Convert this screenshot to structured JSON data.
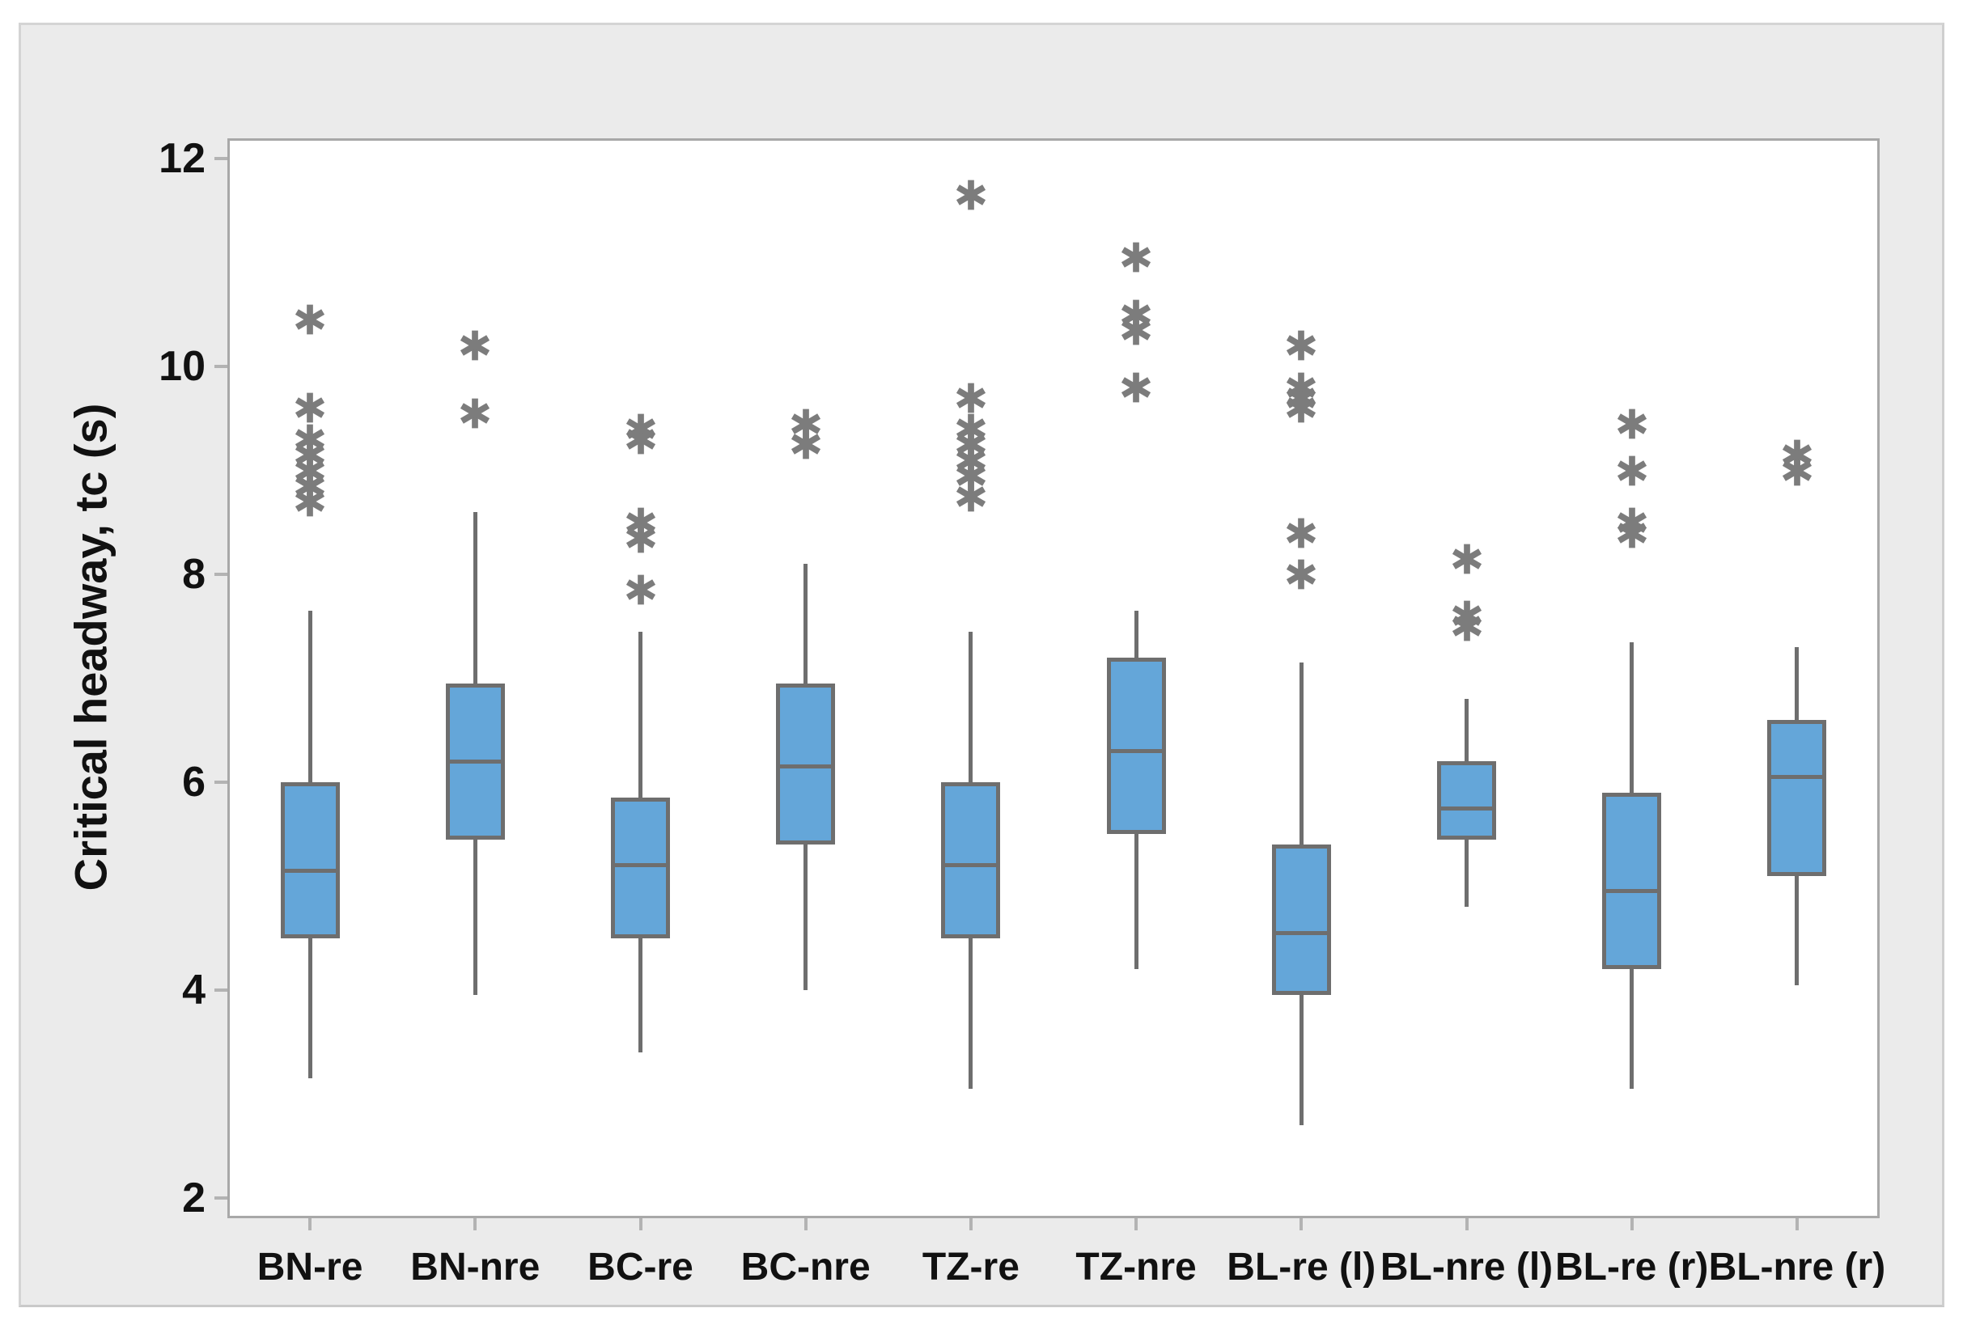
{
  "colors": {
    "page_bg": "#ffffff",
    "canvas_bg": "#ebebeb",
    "canvas_border": "#d4d4d4",
    "plot_bg": "#ffffff",
    "plot_border": "#a8a8a8",
    "tick_color": "#b3b3b3",
    "box_fill": "#64a6d9",
    "line_color": "#6e6e6e",
    "outlier_color": "#7c7c7c",
    "text_color": "#111111"
  },
  "chart_data": {
    "type": "boxplot",
    "title": "",
    "xlabel": "",
    "ylabel": "Critical headway, tc (s)",
    "ylim": [
      1.8,
      12.2
    ],
    "yticks": [
      2,
      4,
      6,
      8,
      10,
      12
    ],
    "grid": false,
    "legend": false,
    "categories": [
      "BN-re",
      "BN-nre",
      "BC-re",
      "BC-nre",
      "TZ-re",
      "TZ-nre",
      "BL-re (l)",
      "BL-nre (l)",
      "BL-re (r)",
      "BL-nre (r)"
    ],
    "boxes": [
      {
        "category": "BN-re",
        "whisker_low": 3.15,
        "q1": 4.5,
        "median": 5.15,
        "q3": 6.0,
        "whisker_high": 7.65,
        "outliers": [
          8.7,
          8.85,
          9.0,
          9.15,
          9.3,
          9.6,
          10.45
        ]
      },
      {
        "category": "BN-nre",
        "whisker_low": 3.95,
        "q1": 5.45,
        "median": 6.2,
        "q3": 6.95,
        "whisker_high": 8.6,
        "outliers": [
          9.55,
          10.2
        ]
      },
      {
        "category": "BC-re",
        "whisker_low": 3.4,
        "q1": 4.5,
        "median": 5.2,
        "q3": 5.85,
        "whisker_high": 7.45,
        "outliers": [
          7.85,
          8.35,
          8.5,
          9.3,
          9.4
        ]
      },
      {
        "category": "BC-nre",
        "whisker_low": 4.0,
        "q1": 5.4,
        "median": 6.15,
        "q3": 6.95,
        "whisker_high": 8.1,
        "outliers": [
          9.25,
          9.45
        ]
      },
      {
        "category": "TZ-re",
        "whisker_low": 3.05,
        "q1": 4.5,
        "median": 5.2,
        "q3": 6.0,
        "whisker_high": 7.45,
        "outliers": [
          8.75,
          8.95,
          9.1,
          9.25,
          9.4,
          9.7,
          11.65
        ]
      },
      {
        "category": "TZ-nre",
        "whisker_low": 4.2,
        "q1": 5.5,
        "median": 6.3,
        "q3": 7.2,
        "whisker_high": 7.65,
        "outliers": [
          9.8,
          10.35,
          10.5,
          11.05
        ]
      },
      {
        "category": "BL-re (l)",
        "whisker_low": 2.7,
        "q1": 3.95,
        "median": 4.55,
        "q3": 5.4,
        "whisker_high": 7.15,
        "outliers": [
          8.0,
          8.4,
          9.6,
          9.7,
          9.8,
          10.2
        ]
      },
      {
        "category": "BL-nre (l)",
        "whisker_low": 4.8,
        "q1": 5.45,
        "median": 5.75,
        "q3": 6.2,
        "whisker_high": 6.8,
        "outliers": [
          7.5,
          7.6,
          8.15
        ]
      },
      {
        "category": "BL-re (r)",
        "whisker_low": 3.05,
        "q1": 4.2,
        "median": 4.95,
        "q3": 5.9,
        "whisker_high": 7.35,
        "outliers": [
          8.4,
          8.5,
          9.0,
          9.45
        ]
      },
      {
        "category": "BL-nre (r)",
        "whisker_low": 4.05,
        "q1": 5.1,
        "median": 6.05,
        "q3": 6.6,
        "whisker_high": 7.3,
        "outliers": [
          9.0,
          9.15
        ]
      }
    ]
  }
}
